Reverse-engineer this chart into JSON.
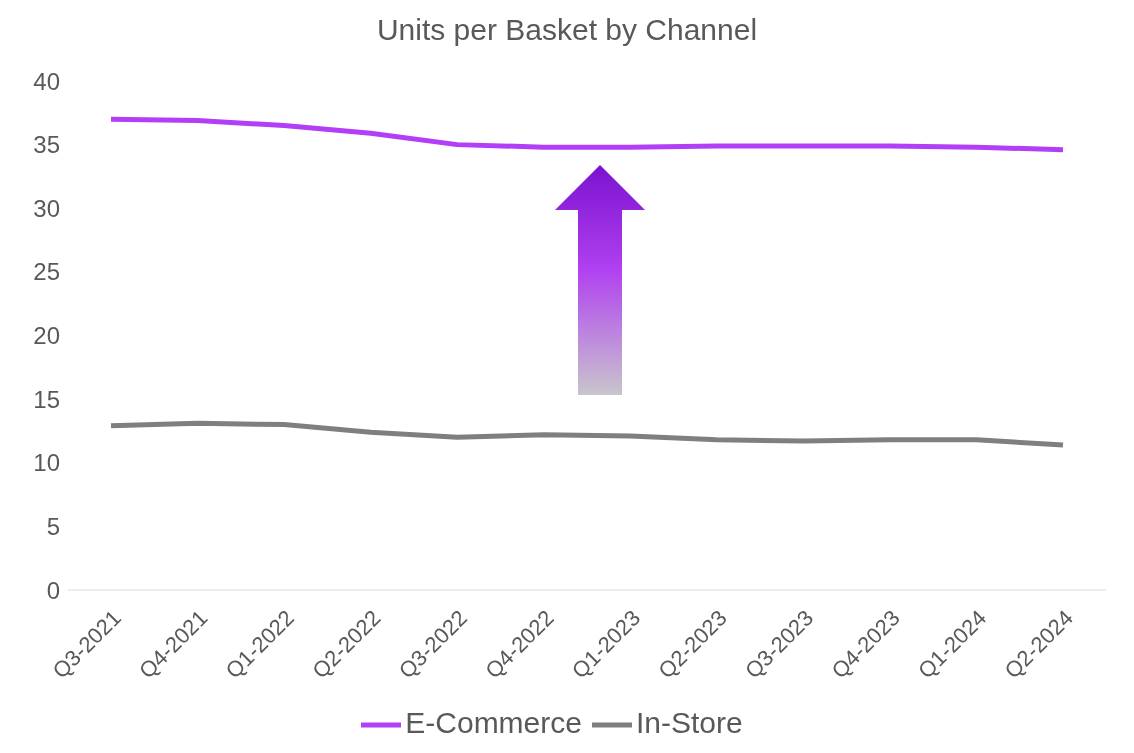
{
  "chart_data": {
    "type": "line",
    "title": "Units per Basket by Channel",
    "categories": [
      "Q3-2021",
      "Q4-2021",
      "Q1-2022",
      "Q2-2022",
      "Q3-2022",
      "Q4-2022",
      "Q1-2023",
      "Q2-2023",
      "Q3-2023",
      "Q4-2023",
      "Q1-2024",
      "Q2-2024"
    ],
    "series": [
      {
        "name": "In-Store",
        "color": "#7f7f7f",
        "values": [
          12.9,
          13.1,
          13.0,
          12.4,
          12.0,
          12.2,
          12.1,
          11.8,
          11.7,
          11.8,
          11.8,
          11.4
        ]
      },
      {
        "name": "E-Commerce",
        "color": "#b23ff5",
        "values": [
          37.0,
          36.9,
          36.5,
          35.9,
          35.0,
          34.8,
          34.8,
          34.9,
          34.9,
          34.9,
          34.8,
          34.6
        ]
      }
    ],
    "ylim": [
      0,
      40
    ],
    "yticks": [
      0,
      5,
      10,
      15,
      20,
      25,
      30,
      35,
      40
    ],
    "legend": "bottom",
    "marker": "none"
  }
}
